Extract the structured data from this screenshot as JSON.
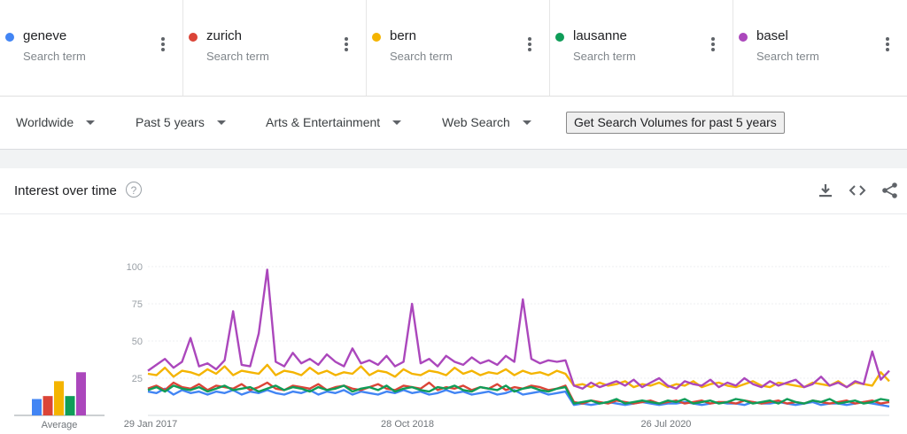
{
  "terms": [
    {
      "name": "geneve",
      "sub": "Search term",
      "color": "#4285f4"
    },
    {
      "name": "zurich",
      "sub": "Search term",
      "color": "#db4437"
    },
    {
      "name": "bern",
      "sub": "Search term",
      "color": "#f4b400"
    },
    {
      "name": "lausanne",
      "sub": "Search term",
      "color": "#0f9d58"
    },
    {
      "name": "basel",
      "sub": "Search term",
      "color": "#ab47bc"
    }
  ],
  "filters": {
    "region": "Worldwide",
    "period": "Past 5 years",
    "category": "Arts & Entertainment",
    "search_type": "Web Search",
    "volume_button": "Get Search Volumes for past 5 years"
  },
  "card": {
    "title": "Interest over time",
    "help_glyph": "?",
    "icons": [
      "download-icon",
      "embed-code-icon",
      "share-icon"
    ]
  },
  "chart_data": {
    "type": "line",
    "y_ticks": [
      "100",
      "75",
      "50",
      "25"
    ],
    "ylim": [
      0,
      100
    ],
    "x_tick_labels": [
      "29 Jan 2017",
      "28 Oct 2018",
      "26 Jul 2020"
    ],
    "average_label": "Average",
    "averages": [
      {
        "name": "geneve",
        "value": 11
      },
      {
        "name": "zurich",
        "value": 13
      },
      {
        "name": "bern",
        "value": 23
      },
      {
        "name": "lausanne",
        "value": 13
      },
      {
        "name": "basel",
        "value": 29
      }
    ],
    "series": [
      {
        "name": "geneve",
        "color": "#4285f4",
        "values": [
          16,
          15,
          18,
          14,
          17,
          15,
          16,
          14,
          16,
          15,
          17,
          14,
          16,
          15,
          17,
          15,
          14,
          16,
          15,
          17,
          14,
          16,
          15,
          17,
          14,
          16,
          15,
          14,
          16,
          15,
          17,
          15,
          16,
          14,
          15,
          17,
          15,
          16,
          14,
          15,
          16,
          14,
          15,
          17,
          14,
          15,
          16,
          14,
          15,
          16,
          7,
          8,
          7,
          8,
          9,
          8,
          7,
          8,
          9,
          8,
          7,
          8,
          8,
          9,
          8,
          7,
          8,
          9,
          8,
          8,
          7,
          9,
          8,
          8,
          9,
          8,
          7,
          8,
          9,
          7,
          8,
          8,
          7,
          8,
          9,
          8,
          7,
          6
        ]
      },
      {
        "name": "zurich",
        "color": "#db4437",
        "values": [
          18,
          20,
          17,
          22,
          19,
          18,
          21,
          17,
          20,
          19,
          18,
          21,
          17,
          19,
          22,
          18,
          17,
          20,
          19,
          18,
          21,
          17,
          19,
          20,
          18,
          17,
          19,
          21,
          18,
          17,
          20,
          19,
          18,
          22,
          17,
          19,
          18,
          20,
          17,
          19,
          18,
          21,
          17,
          19,
          18,
          20,
          19,
          17,
          18,
          20,
          9,
          8,
          10,
          9,
          8,
          10,
          9,
          8,
          9,
          10,
          8,
          9,
          10,
          8,
          9,
          10,
          8,
          9,
          9,
          8,
          10,
          9,
          8,
          9,
          10,
          8,
          9,
          8,
          10,
          9,
          8,
          9,
          10,
          8,
          9,
          10,
          8,
          9
        ]
      },
      {
        "name": "bern",
        "color": "#f4b400",
        "values": [
          28,
          27,
          32,
          26,
          30,
          29,
          27,
          31,
          28,
          33,
          27,
          30,
          29,
          28,
          34,
          27,
          30,
          29,
          27,
          32,
          28,
          30,
          27,
          29,
          28,
          33,
          27,
          30,
          29,
          26,
          31,
          28,
          27,
          30,
          29,
          27,
          32,
          28,
          30,
          27,
          29,
          28,
          31,
          27,
          30,
          28,
          29,
          27,
          30,
          28,
          20,
          21,
          19,
          22,
          20,
          21,
          23,
          19,
          21,
          20,
          22,
          19,
          21,
          20,
          23,
          19,
          21,
          22,
          20,
          19,
          21,
          23,
          20,
          19,
          22,
          21,
          20,
          19,
          22,
          21,
          20,
          23,
          19,
          22,
          21,
          20,
          29,
          23
        ]
      },
      {
        "name": "lausanne",
        "color": "#0f9d58",
        "values": [
          17,
          19,
          16,
          20,
          18,
          17,
          19,
          16,
          18,
          20,
          17,
          18,
          19,
          16,
          18,
          20,
          17,
          19,
          18,
          16,
          19,
          17,
          18,
          20,
          16,
          18,
          19,
          17,
          20,
          16,
          18,
          19,
          17,
          16,
          19,
          18,
          20,
          17,
          16,
          19,
          18,
          17,
          20,
          16,
          18,
          19,
          17,
          16,
          18,
          19,
          8,
          9,
          10,
          8,
          9,
          11,
          8,
          9,
          10,
          9,
          8,
          10,
          9,
          11,
          8,
          9,
          10,
          8,
          9,
          11,
          10,
          8,
          9,
          10,
          8,
          11,
          9,
          8,
          10,
          9,
          11,
          8,
          9,
          10,
          8,
          9,
          11,
          10
        ]
      },
      {
        "name": "basel",
        "color": "#ab47bc",
        "values": [
          30,
          34,
          38,
          32,
          36,
          52,
          33,
          35,
          31,
          37,
          70,
          34,
          33,
          55,
          98,
          36,
          33,
          42,
          35,
          38,
          34,
          41,
          36,
          33,
          45,
          35,
          37,
          34,
          40,
          33,
          36,
          75,
          35,
          38,
          33,
          40,
          36,
          34,
          39,
          35,
          37,
          34,
          40,
          36,
          78,
          38,
          35,
          37,
          36,
          37,
          20,
          18,
          22,
          19,
          21,
          23,
          20,
          24,
          19,
          22,
          25,
          20,
          18,
          23,
          21,
          20,
          24,
          19,
          22,
          20,
          25,
          21,
          19,
          23,
          20,
          22,
          24,
          19,
          21,
          26,
          20,
          22,
          19,
          23,
          21,
          43,
          24,
          30
        ]
      }
    ]
  }
}
